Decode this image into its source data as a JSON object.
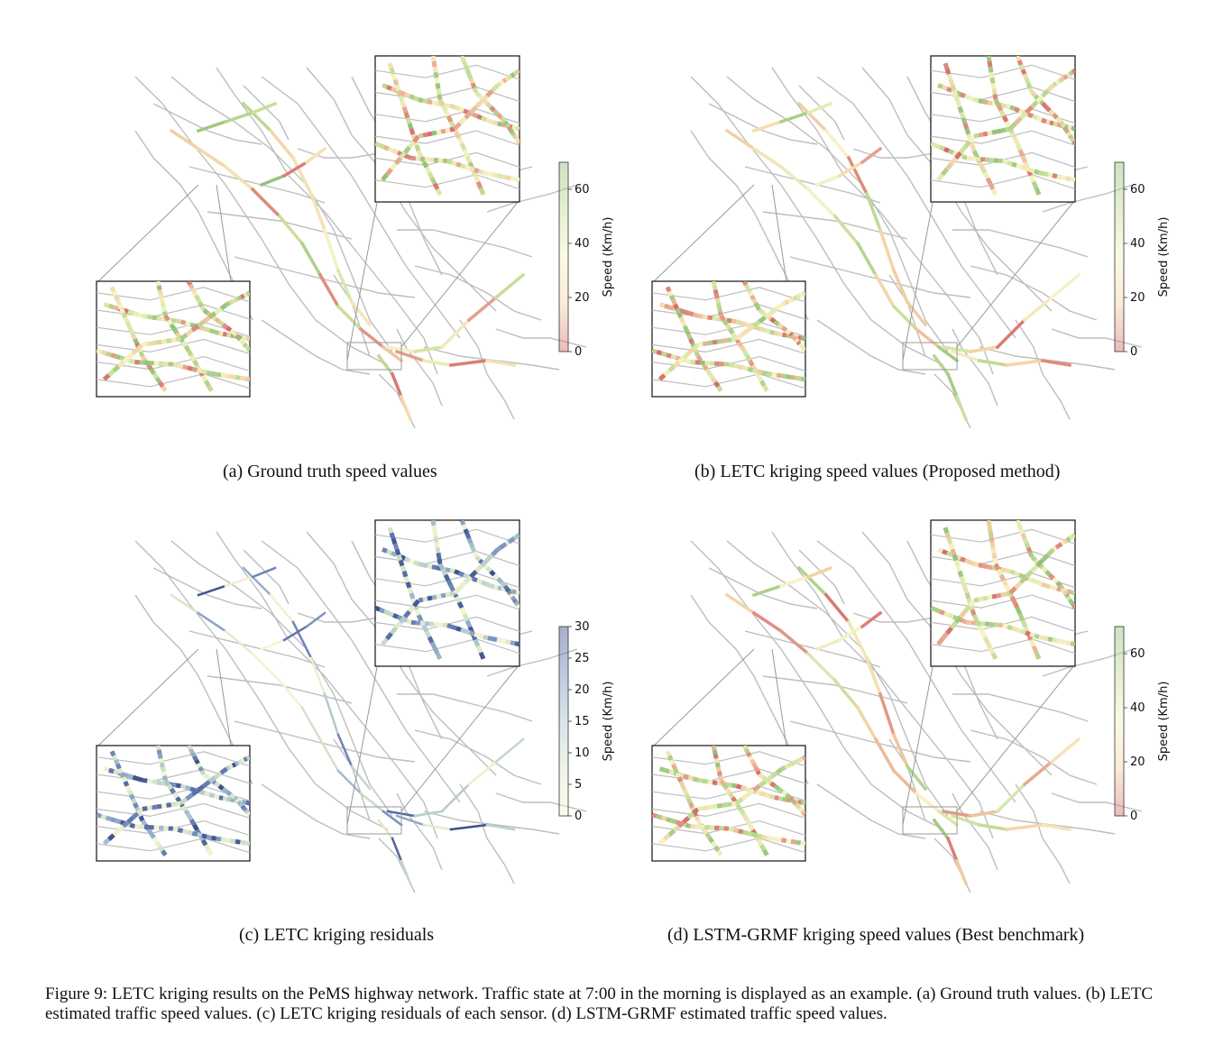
{
  "panels": [
    {
      "id": "a",
      "caption": "(a)  Ground truth speed values",
      "colorbar": {
        "label": "Speed (Km/h)",
        "ticks": [
          "0",
          "20",
          "40",
          "60"
        ],
        "min": 0,
        "max": 70,
        "scheme": "speed"
      },
      "scheme": "speed",
      "seed": 11
    },
    {
      "id": "b",
      "caption": "(b)  LETC kriging speed values (Proposed method)",
      "colorbar": {
        "label": "Speed (Km/h)",
        "ticks": [
          "0",
          "20",
          "40",
          "60"
        ],
        "min": 0,
        "max": 70,
        "scheme": "speed"
      },
      "scheme": "speed",
      "seed": 23
    },
    {
      "id": "c",
      "caption": "(c)  LETC kriging residuals",
      "colorbar": {
        "label": "Speed (Km/h)",
        "ticks": [
          "0",
          "5",
          "10",
          "15",
          "20",
          "25",
          "30"
        ],
        "min": 0,
        "max": 30,
        "scheme": "residual"
      },
      "scheme": "residual",
      "seed": 37
    },
    {
      "id": "d",
      "caption": "(d)  LSTM-GRMF kriging speed values (Best benchmark)",
      "colorbar": {
        "label": "Speed (Km/h)",
        "ticks": [
          "0",
          "20",
          "40",
          "60"
        ],
        "min": 0,
        "max": 70,
        "scheme": "speed"
      },
      "scheme": "speed",
      "seed": 53
    }
  ],
  "figure_caption": "Figure 9: LETC kriging results on the PeMS highway network. Traffic state at 7:00 in the morning is displayed as an example. (a) Ground truth values. (b) LETC estimated traffic speed values. (c) LETC kriging residuals of each sensor. (d) LSTM-GRMF estimated traffic speed values.",
  "colors": {
    "road": "#bdbdbd",
    "speed_scale": [
      "#d46a6a",
      "#f2d4a8",
      "#f6f4c6",
      "#c4dc96",
      "#8fc079"
    ],
    "residual_scale": [
      "#f7f6d2",
      "#dbe6c8",
      "#a9c4cf",
      "#6f86b8",
      "#3a4e8c"
    ]
  }
}
